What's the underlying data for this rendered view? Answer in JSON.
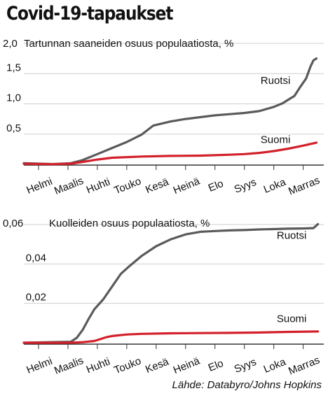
{
  "figure_title": "Covid-19-tapaukset",
  "source": "Lähde: Databyro/Johns Hopkins",
  "colors": {
    "Ruotsi": "#5a5a5a",
    "Suomi": "#d3202a",
    "grid": "#cfcfcf",
    "axis": "#333333"
  },
  "chart_data": [
    {
      "type": "line",
      "title": "Tartunnan saaneiden osuus populaatiosta, %",
      "ylim": [
        0,
        2.0
      ],
      "yticks": [
        0.5,
        1.0,
        1.5,
        2.0
      ],
      "ytick_labels": [
        "0,5",
        "1,0",
        "1,5",
        "2,0"
      ],
      "xlim": [
        0,
        10.2
      ],
      "xticks": [
        0.5,
        1.5,
        2.5,
        3.5,
        4.5,
        5.5,
        6.5,
        7.5,
        8.5,
        9.5
      ],
      "categories": [
        "Helmi",
        "Maalis",
        "Huhti",
        "Touko",
        "Kesä",
        "Heinä",
        "Elo",
        "Syys",
        "Loka",
        "Marras"
      ],
      "grid": true,
      "legend": "inline labels",
      "series": [
        {
          "name": "Ruotsi",
          "x": [
            0,
            1.0,
            1.6,
            2.0,
            2.5,
            3.0,
            3.5,
            4.0,
            4.4,
            5.0,
            5.5,
            6.0,
            6.5,
            7.0,
            7.5,
            8.0,
            8.5,
            8.8,
            9.0,
            9.2,
            9.4,
            9.6,
            9.75,
            9.85,
            9.95
          ],
          "y": [
            0.02,
            0.005,
            0.02,
            0.07,
            0.17,
            0.27,
            0.37,
            0.49,
            0.64,
            0.71,
            0.75,
            0.78,
            0.81,
            0.83,
            0.85,
            0.88,
            0.95,
            1.01,
            1.07,
            1.13,
            1.28,
            1.42,
            1.62,
            1.72,
            1.75
          ]
        },
        {
          "name": "Suomi",
          "x": [
            0,
            1.0,
            1.6,
            2.0,
            2.5,
            3.0,
            4.0,
            5.0,
            6.0,
            7.0,
            7.5,
            8.0,
            8.5,
            9.0,
            9.5,
            9.95
          ],
          "y": [
            0.01,
            0.003,
            0.012,
            0.04,
            0.08,
            0.11,
            0.13,
            0.14,
            0.145,
            0.16,
            0.17,
            0.19,
            0.22,
            0.26,
            0.31,
            0.36
          ]
        }
      ],
      "series_labels": [
        {
          "name": "Ruotsi",
          "x": 8.05,
          "y": 1.33
        },
        {
          "name": "Suomi",
          "x": 8.05,
          "y": 0.35
        }
      ]
    },
    {
      "type": "line",
      "title": "Kuolleiden osuus populaatiosta, %",
      "ylim": [
        0,
        0.06
      ],
      "yticks": [
        0.02,
        0.04,
        0.06
      ],
      "ytick_labels": [
        "0,02",
        "0,04",
        "0,06"
      ],
      "xlim": [
        0,
        10.2
      ],
      "xticks": [
        0.5,
        1.5,
        2.5,
        3.5,
        4.5,
        5.5,
        6.5,
        7.5,
        8.5,
        9.5
      ],
      "categories": [
        "Helmi",
        "Maalis",
        "Huhti",
        "Touko",
        "Kesä",
        "Heinä",
        "Elo",
        "Syys",
        "Loka",
        "Marras"
      ],
      "grid": true,
      "legend": "inline labels",
      "series": [
        {
          "name": "Ruotsi",
          "x": [
            0,
            1.6,
            1.8,
            2.0,
            2.2,
            2.4,
            2.7,
            3.0,
            3.3,
            3.6,
            4.0,
            4.5,
            5.0,
            5.5,
            6.0,
            6.5,
            7.0,
            7.5,
            8.0,
            8.5,
            9.0,
            9.5,
            9.85,
            10.0
          ],
          "y": [
            0,
            0.0005,
            0.0025,
            0.0065,
            0.012,
            0.017,
            0.022,
            0.0285,
            0.035,
            0.039,
            0.044,
            0.049,
            0.0525,
            0.055,
            0.0563,
            0.0567,
            0.057,
            0.0572,
            0.0575,
            0.0577,
            0.0579,
            0.058,
            0.0582,
            0.0602
          ]
        },
        {
          "name": "Suomi",
          "x": [
            0,
            1.6,
            2.0,
            2.4,
            2.8,
            3.0,
            3.5,
            4.0,
            5.0,
            6.0,
            7.0,
            8.0,
            9.0,
            10.0
          ],
          "y": [
            0,
            0,
            0.0003,
            0.0009,
            0.0028,
            0.0034,
            0.0042,
            0.0045,
            0.0048,
            0.0049,
            0.005,
            0.0052,
            0.0055,
            0.0057
          ]
        }
      ],
      "series_labels": [
        {
          "name": "Ruotsi",
          "x": 8.6,
          "y": 0.0528
        },
        {
          "name": "Suomi",
          "x": 8.6,
          "y": 0.0105
        }
      ]
    }
  ]
}
